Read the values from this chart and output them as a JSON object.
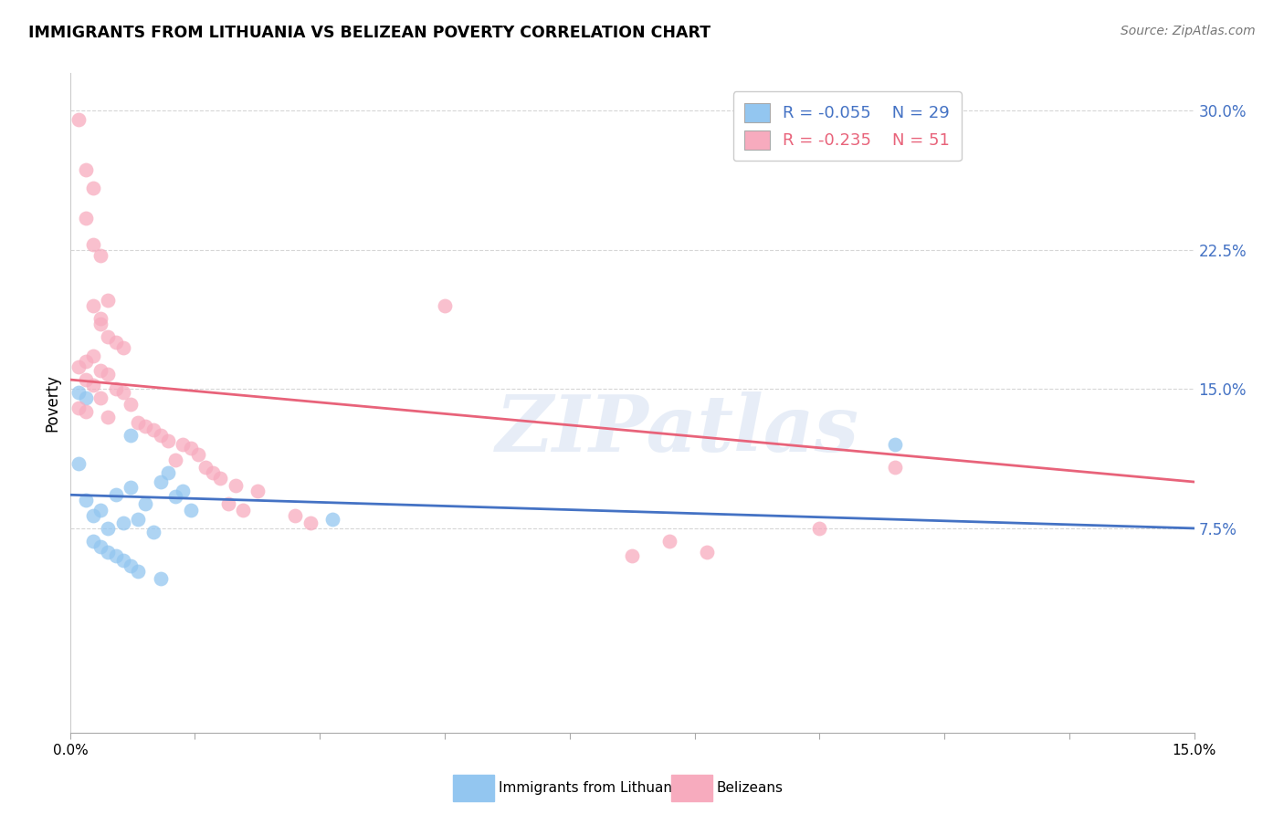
{
  "title": "IMMIGRANTS FROM LITHUANIA VS BELIZEAN POVERTY CORRELATION CHART",
  "source": "Source: ZipAtlas.com",
  "ylabel": "Poverty",
  "xlim": [
    0.0,
    0.15
  ],
  "ylim": [
    -0.035,
    0.32
  ],
  "yticks": [
    0.075,
    0.15,
    0.225,
    0.3
  ],
  "ytick_labels": [
    "7.5%",
    "15.0%",
    "22.5%",
    "30.0%"
  ],
  "xticks": [
    0.0,
    0.0166,
    0.0333,
    0.05,
    0.0666,
    0.0833,
    0.1,
    0.1166,
    0.1333,
    0.15
  ],
  "watermark": "ZIPatlas",
  "legend_blue_r": "-0.055",
  "legend_blue_n": "29",
  "legend_pink_r": "-0.235",
  "legend_pink_n": "51",
  "blue_color": "#93C6F0",
  "pink_color": "#F7ABBE",
  "blue_line_color": "#4472C4",
  "pink_line_color": "#E8637A",
  "blue_scatter": [
    [
      0.001,
      0.148
    ],
    [
      0.002,
      0.145
    ],
    [
      0.001,
      0.11
    ],
    [
      0.002,
      0.09
    ],
    [
      0.008,
      0.125
    ],
    [
      0.01,
      0.088
    ],
    [
      0.012,
      0.1
    ],
    [
      0.008,
      0.097
    ],
    [
      0.006,
      0.093
    ],
    [
      0.004,
      0.085
    ],
    [
      0.003,
      0.082
    ],
    [
      0.009,
      0.08
    ],
    [
      0.007,
      0.078
    ],
    [
      0.005,
      0.075
    ],
    [
      0.011,
      0.073
    ],
    [
      0.013,
      0.105
    ],
    [
      0.015,
      0.095
    ],
    [
      0.014,
      0.092
    ],
    [
      0.016,
      0.085
    ],
    [
      0.003,
      0.068
    ],
    [
      0.004,
      0.065
    ],
    [
      0.005,
      0.062
    ],
    [
      0.006,
      0.06
    ],
    [
      0.007,
      0.058
    ],
    [
      0.008,
      0.055
    ],
    [
      0.009,
      0.052
    ],
    [
      0.012,
      0.048
    ],
    [
      0.035,
      0.08
    ],
    [
      0.11,
      0.12
    ]
  ],
  "pink_scatter": [
    [
      0.001,
      0.295
    ],
    [
      0.002,
      0.268
    ],
    [
      0.003,
      0.258
    ],
    [
      0.002,
      0.242
    ],
    [
      0.003,
      0.228
    ],
    [
      0.004,
      0.222
    ],
    [
      0.003,
      0.195
    ],
    [
      0.004,
      0.188
    ],
    [
      0.005,
      0.198
    ],
    [
      0.004,
      0.185
    ],
    [
      0.005,
      0.178
    ],
    [
      0.006,
      0.175
    ],
    [
      0.007,
      0.172
    ],
    [
      0.003,
      0.168
    ],
    [
      0.002,
      0.165
    ],
    [
      0.001,
      0.162
    ],
    [
      0.004,
      0.16
    ],
    [
      0.005,
      0.158
    ],
    [
      0.002,
      0.155
    ],
    [
      0.003,
      0.152
    ],
    [
      0.006,
      0.15
    ],
    [
      0.007,
      0.148
    ],
    [
      0.004,
      0.145
    ],
    [
      0.008,
      0.142
    ],
    [
      0.001,
      0.14
    ],
    [
      0.002,
      0.138
    ],
    [
      0.005,
      0.135
    ],
    [
      0.009,
      0.132
    ],
    [
      0.01,
      0.13
    ],
    [
      0.011,
      0.128
    ],
    [
      0.012,
      0.125
    ],
    [
      0.013,
      0.122
    ],
    [
      0.015,
      0.12
    ],
    [
      0.016,
      0.118
    ],
    [
      0.017,
      0.115
    ],
    [
      0.014,
      0.112
    ],
    [
      0.018,
      0.108
    ],
    [
      0.019,
      0.105
    ],
    [
      0.02,
      0.102
    ],
    [
      0.022,
      0.098
    ],
    [
      0.025,
      0.095
    ],
    [
      0.021,
      0.088
    ],
    [
      0.023,
      0.085
    ],
    [
      0.03,
      0.082
    ],
    [
      0.032,
      0.078
    ],
    [
      0.05,
      0.195
    ],
    [
      0.075,
      0.06
    ],
    [
      0.08,
      0.068
    ],
    [
      0.085,
      0.062
    ],
    [
      0.1,
      0.075
    ],
    [
      0.11,
      0.108
    ]
  ],
  "blue_line_x": [
    0.0,
    0.15
  ],
  "blue_line_y": [
    0.093,
    0.075
  ],
  "pink_line_x": [
    0.0,
    0.15
  ],
  "pink_line_y": [
    0.155,
    0.1
  ],
  "background_color": "#FFFFFF",
  "grid_color": "#CCCCCC"
}
